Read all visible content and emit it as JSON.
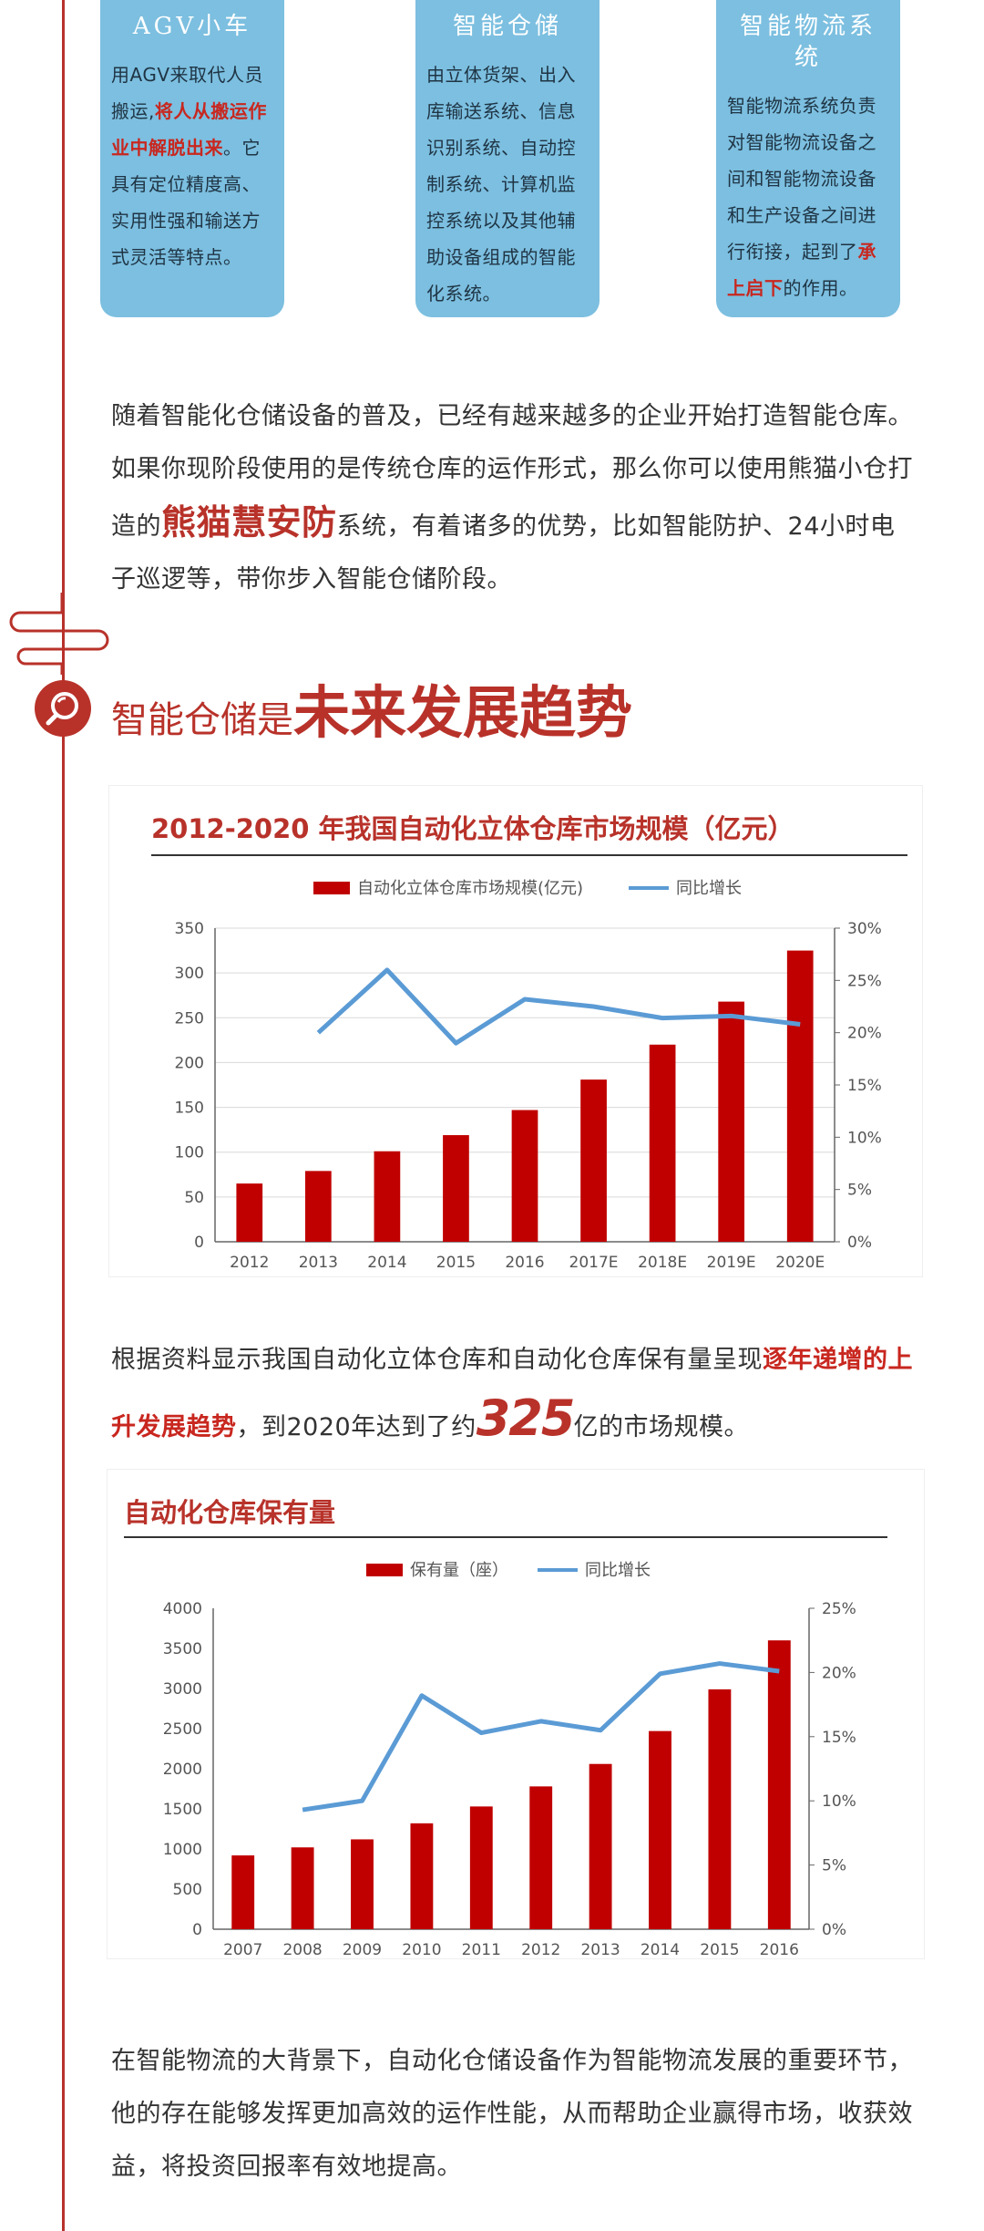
{
  "cards": [
    {
      "title": "AGV小车",
      "body": [
        {
          "t": "用AGV来取代人员"
        },
        {
          "t": "搬运,"
        },
        {
          "t": "将人从搬运",
          "red": true
        },
        {
          "t": "作业中解脱出来",
          "red": true
        },
        {
          "t": "。"
        },
        {
          "t": "它具有定位精度高"
        },
        {
          "t": "、实用性强和输送"
        },
        {
          "t": "方式灵活等特点。"
        }
      ]
    },
    {
      "title": "智能仓储",
      "body": [
        {
          "t": "由立体货架、出入"
        },
        {
          "t": "库输送系统、信息"
        },
        {
          "t": "识别系统、自动控"
        },
        {
          "t": "制系统、计算机监"
        },
        {
          "t": "控系统以及其他辅"
        },
        {
          "t": "助设备组成的智能"
        },
        {
          "t": "化系统。"
        }
      ]
    },
    {
      "title": "智能物流系统",
      "body": [
        {
          "t": "智能物流系统负责"
        },
        {
          "t": "对智能物流设备之"
        },
        {
          "t": "间和智能物流设备"
        },
        {
          "t": "和生产设备之间进"
        },
        {
          "t": "行衔接，起到了"
        },
        {
          "t": "承",
          "red": true
        },
        {
          "t": "上启下",
          "red": true
        },
        {
          "t": "的作用。"
        }
      ]
    }
  ],
  "para1": {
    "a": "随着智能化仓储设备的普及，已经有越来越多的企业开始打造智能仓库。如果你现阶段使用的是传统仓库的运作形式，那么你可以使用熊猫小仓打造的",
    "brand": "熊猫慧安防",
    "b": "系统，有着诸多的优势，比如智能防护、24小时电子巡逻等，带你步入智能仓储阶段。"
  },
  "heading": {
    "small": "智能仓储是",
    "large": "未来发展趋势"
  },
  "para2": {
    "a": "根据资料显示我国自动化立体仓库和自动化仓库保有量呈现",
    "red": "逐年递增的上升发展趋势",
    "b": "，到2020年达到了约",
    "num": "325",
    "c": "亿的市场规模。"
  },
  "para3": "在智能物流的大背景下，自动化仓储设备作为智能物流发展的重要环节，他的存在能够发挥更加高效的运作性能，从而帮助企业赢得市场，收获效益，将投资回报率有效地提高。",
  "colors": {
    "accent": "#b8322a",
    "card": "#7cbfe0",
    "bar": "#c00000",
    "line": "#5b9bd5"
  },
  "chart_data": [
    {
      "type": "bar",
      "title": "2012-2020 年我国自动化立体仓库市场规模（亿元）",
      "categories": [
        "2012",
        "2013",
        "2014",
        "2015",
        "2016",
        "2017E",
        "2018E",
        "2019E",
        "2020E"
      ],
      "series": [
        {
          "name": "自动化立体仓库市场规模(亿元)",
          "kind": "bar",
          "axis": "left",
          "values": [
            65,
            79,
            101,
            119,
            147,
            181,
            220,
            268,
            325
          ]
        },
        {
          "name": "同比增长",
          "kind": "line",
          "axis": "right",
          "values": [
            null,
            0.2,
            0.26,
            0.19,
            0.232,
            0.225,
            0.214,
            0.216,
            0.208
          ]
        }
      ],
      "ylim": [
        0,
        350
      ],
      "yticks": [
        "0",
        "50",
        "100",
        "150",
        "200",
        "250",
        "300",
        "350"
      ],
      "y2lim": [
        0,
        0.3
      ],
      "y2ticks": [
        "0%",
        "5%",
        "10%",
        "15%",
        "20%",
        "25%",
        "30%"
      ],
      "grid": true,
      "legend": "top"
    },
    {
      "type": "bar",
      "title": "自动化仓库保有量",
      "categories": [
        "2007",
        "2008",
        "2009",
        "2010",
        "2011",
        "2012",
        "2013",
        "2014",
        "2015",
        "2016"
      ],
      "series": [
        {
          "name": "保有量（座）",
          "kind": "bar",
          "axis": "left",
          "values": [
            920,
            1020,
            1120,
            1320,
            1530,
            1780,
            2060,
            2470,
            2990,
            3600
          ]
        },
        {
          "name": "同比增长",
          "kind": "line",
          "axis": "right",
          "values": [
            null,
            0.093,
            0.1,
            0.182,
            0.153,
            0.162,
            0.155,
            0.199,
            0.207,
            0.201
          ]
        }
      ],
      "ylim": [
        0,
        4000
      ],
      "yticks": [
        "0",
        "500",
        "1000",
        "1500",
        "2000",
        "2500",
        "3000",
        "3500",
        "4000"
      ],
      "y2lim": [
        0,
        0.25
      ],
      "y2ticks": [
        "0%",
        "5%",
        "10%",
        "15%",
        "20%",
        "25%"
      ],
      "grid": false,
      "legend": "top"
    }
  ]
}
